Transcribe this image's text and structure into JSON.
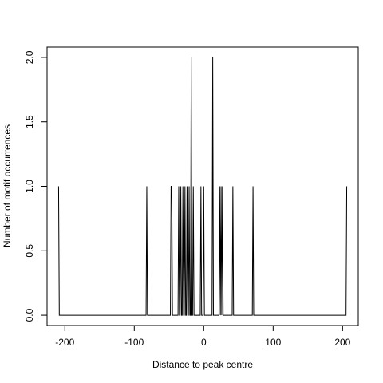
{
  "chart_data": {
    "type": "line",
    "xlabel": "Distance to peak centre",
    "ylabel": "Number of motif occurrences",
    "x": [
      -209,
      -208,
      -83,
      -82,
      -81,
      -48,
      -47,
      -46,
      -45,
      -37,
      -36,
      -35,
      -34,
      -33,
      -32,
      -31,
      -30,
      -29,
      -28,
      -27,
      -26,
      -25,
      -24,
      -23,
      -22,
      -21,
      -20,
      -19,
      -18,
      -17,
      -16,
      -15,
      -14,
      -5,
      -4,
      -3,
      -1,
      0,
      1,
      12,
      13,
      14,
      22,
      23,
      24,
      25,
      26,
      27,
      28,
      41,
      42,
      43,
      70,
      71,
      72,
      205,
      206
    ],
    "values": [
      1,
      0,
      0,
      1,
      0,
      0,
      1,
      1,
      0,
      0,
      1,
      0,
      0,
      1,
      0,
      0,
      1,
      0,
      0,
      1,
      0,
      0,
      1,
      0,
      0,
      1,
      0,
      0,
      2,
      0,
      0,
      1,
      0,
      0,
      1,
      0,
      0,
      1,
      0,
      0,
      2,
      0,
      0,
      1,
      0,
      1,
      0,
      1,
      0,
      0,
      1,
      0,
      0,
      1,
      0,
      0,
      1
    ],
    "color": "#000000",
    "xlim": [
      -225.6,
      222.6
    ],
    "ylim": [
      -0.08,
      2.08
    ],
    "xticks": [
      -200,
      -100,
      0,
      100,
      200
    ],
    "yticks": [
      {
        "value": 0,
        "label": "0.0"
      },
      {
        "value": 0.5,
        "label": "0.5"
      },
      {
        "value": 1,
        "label": "1.0"
      },
      {
        "value": 1.5,
        "label": "1.5"
      },
      {
        "value": 2,
        "label": "2.0"
      }
    ]
  }
}
